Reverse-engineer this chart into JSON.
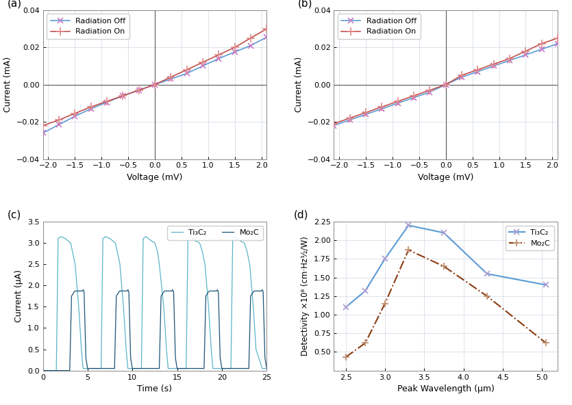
{
  "fig_bg": "#ffffff",
  "panel_bg": "#ffffff",
  "grid_color": "#c8d4e0",
  "ab_voltage": [
    -2.1,
    -1.8,
    -1.5,
    -1.2,
    -0.9,
    -0.6,
    -0.3,
    0.0,
    0.3,
    0.6,
    0.9,
    1.2,
    1.5,
    1.8,
    2.1
  ],
  "a_off_current": [
    -0.026,
    -0.0215,
    -0.017,
    -0.013,
    -0.0095,
    -0.006,
    -0.003,
    0.0,
    0.003,
    0.006,
    0.01,
    0.014,
    0.0175,
    0.021,
    0.0255
  ],
  "a_on_current": [
    -0.022,
    -0.019,
    -0.0155,
    -0.012,
    -0.009,
    -0.006,
    -0.003,
    0.0,
    0.004,
    0.008,
    0.012,
    0.016,
    0.02,
    0.025,
    0.03
  ],
  "b_off_current": [
    -0.022,
    -0.019,
    -0.016,
    -0.013,
    -0.01,
    -0.007,
    -0.004,
    0.0,
    0.004,
    0.007,
    0.01,
    0.013,
    0.016,
    0.019,
    0.022
  ],
  "b_on_current": [
    -0.021,
    -0.018,
    -0.015,
    -0.012,
    -0.009,
    -0.006,
    -0.003,
    0.0,
    0.005,
    0.008,
    0.011,
    0.014,
    0.018,
    0.022,
    0.025
  ],
  "ab_ylim": [
    -0.04,
    0.04
  ],
  "ab_xlim": [
    -2.1,
    2.1
  ],
  "ab_yticks": [
    -0.04,
    -0.02,
    0.0,
    0.02,
    0.04
  ],
  "ab_xticks": [
    -2.0,
    -1.5,
    -1.0,
    -0.5,
    0.0,
    0.5,
    1.0,
    1.5,
    2.0
  ],
  "ab_ylabel": "Current (mA)",
  "ab_xlabel": "Voltage (mV)",
  "line_off_color": "#5b9bd5",
  "line_on_color": "#c0504d",
  "marker_size": 6,
  "line_width": 1.2,
  "c_ylim": [
    0.0,
    3.5
  ],
  "c_xlim": [
    0,
    25
  ],
  "c_yticks": [
    0.0,
    0.5,
    1.0,
    1.5,
    2.0,
    2.5,
    3.0,
    3.5
  ],
  "c_xticks": [
    0,
    5,
    10,
    15,
    20,
    25
  ],
  "c_ylabel": "Current (μA)",
  "c_xlabel": "Time (s)",
  "c_Ti3C2_color": "#5ab4c8",
  "c_Mo2C_color": "#1a5276",
  "d_Ti3C2_wavelength": [
    2.5,
    2.75,
    3.0,
    3.3,
    3.75,
    4.3,
    5.05
  ],
  "d_Ti3C2_detect": [
    1.1,
    1.32,
    1.75,
    2.2,
    2.1,
    1.55,
    1.4
  ],
  "d_Mo2C_wavelength": [
    2.5,
    2.75,
    3.0,
    3.3,
    3.75,
    4.3,
    5.05
  ],
  "d_Mo2C_detect": [
    0.43,
    0.62,
    1.15,
    1.87,
    1.65,
    1.25,
    0.62
  ],
  "d_ylim": [
    0.25,
    2.25
  ],
  "d_xlim": [
    2.35,
    5.2
  ],
  "d_yticks": [
    0.5,
    0.75,
    1.0,
    1.25,
    1.5,
    1.75,
    2.0,
    2.25
  ],
  "d_xticks": [
    2.5,
    3.0,
    3.5,
    4.0,
    4.5,
    5.0
  ],
  "d_ylabel": "Detectivity ×10⁸ (cm·Hz½/W)",
  "d_xlabel": "Peak Wavelength (μm)",
  "d_Ti3C2_color": "#5b9bd5",
  "d_Mo2C_color": "#8b3a10",
  "label_fontsize": 9,
  "tick_fontsize": 8,
  "legend_fontsize": 8,
  "panel_label_fontsize": 11
}
